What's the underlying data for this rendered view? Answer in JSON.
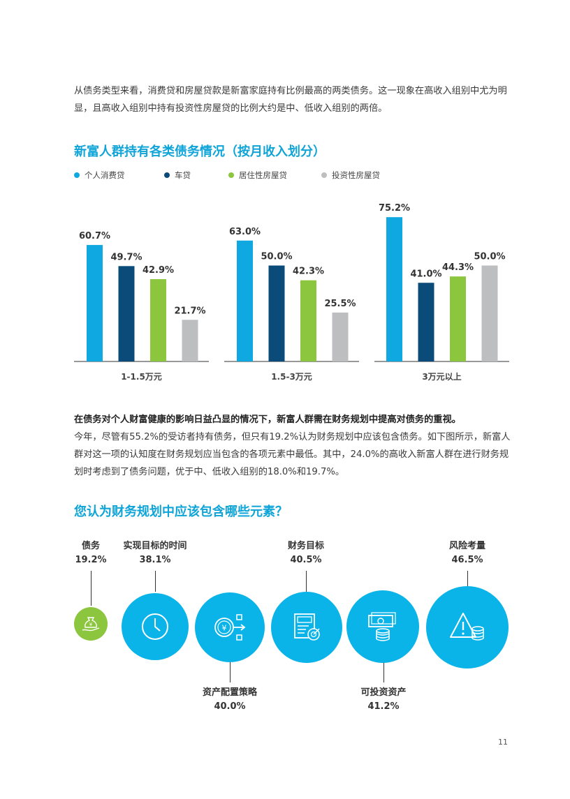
{
  "intro_text": "从债务类型来看，消费贷和房屋贷款是新富家庭持有比例最高的两类债务。这一现象在高收入组别中尤为明显，且高收入组别中持有投资性房屋贷的比例大约是中、低收入组别的两倍。",
  "chart_title": "新富人群持有各类债务情况（按月收入划分）",
  "chart_data": [
    {
      "type": "bar",
      "title": "新富人群持有各类债务情况（按月收入划分）",
      "categories": [
        "1-1.5万元",
        "1.5-3万元",
        "3万元以上"
      ],
      "series": [
        {
          "name": "个人消费贷",
          "color": "#10a8e0",
          "values": [
            60.7,
            63.0,
            75.2
          ],
          "labels": [
            "60.7%",
            "63.0%",
            "75.2%"
          ]
        },
        {
          "name": "车贷",
          "color": "#0a4b7a",
          "values": [
            49.7,
            50.0,
            41.0
          ],
          "labels": [
            "49.7%",
            "50.0%",
            "41.0%"
          ]
        },
        {
          "name": "居住性房屋贷",
          "color": "#8cc63f",
          "values": [
            42.9,
            42.3,
            44.3
          ],
          "labels": [
            "42.9%",
            "42.3%",
            "44.3%"
          ]
        },
        {
          "name": "投资性房屋贷",
          "color": "#bcbec0",
          "values": [
            21.7,
            25.5,
            50.0
          ],
          "labels": [
            "21.7%",
            "25.5%",
            "50.0%"
          ]
        }
      ],
      "ylim": [
        0,
        80
      ],
      "legend": "top-left",
      "grid": false
    },
    {
      "type": "bubble",
      "title": "您认为财务规划中应该包含哪些元素？",
      "categories": [
        "债务",
        "实现目标的时间",
        "资产配置策略",
        "财务目标",
        "可投资资产",
        "风险考量"
      ],
      "values": [
        19.2,
        38.1,
        40.0,
        40.5,
        41.2,
        46.5
      ],
      "labels": [
        "19.2%",
        "38.1%",
        "40.0%",
        "40.5%",
        "41.2%",
        "46.5%"
      ]
    }
  ],
  "para2_bold": "在债务对个人财富健康的影响日益凸显的情况下，新富人群需在财务规划中提高对债务的重视。",
  "para2_text": "今年，尽管有55.2%的受访者持有债务，但只有19.2%认为财务规划中应该包含债务。如下图所示，新富人群对这一项的认知度在财务规划应当包含的各项元素中最低。其中，24.0%的高收入新富人群在进行财务规划时考虑到了债务问题，优于中、低收入组别的18.0%和19.7%。",
  "chart2_title": "您认为财务规划中应该包含哪些元素？",
  "icons": {
    "debt": "money-bag-hand-icon",
    "time": "clock-icon",
    "allocation": "yuan-flow-icon",
    "goal": "document-target-icon",
    "assets": "cash-coins-icon",
    "risk": "warning-coins-icon"
  },
  "colors": {
    "accent": "#0ea4d8",
    "bubble": "#0ab3e8",
    "debt_bubble": "#8cc63f"
  },
  "page_number": "11"
}
